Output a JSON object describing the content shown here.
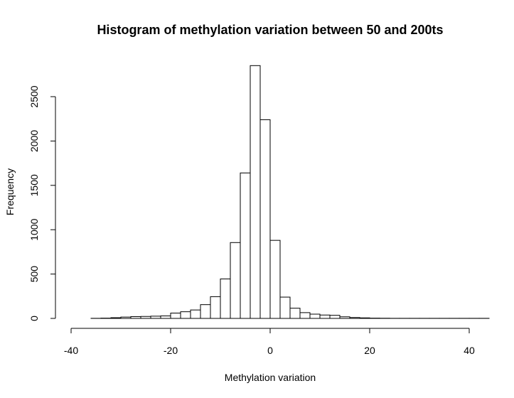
{
  "chart_data": {
    "type": "bar",
    "title": "Histogram of methylation variation between 50 and 200ts",
    "xlabel": "Methylation variation",
    "ylabel": "Frequency",
    "xlim": [
      -40,
      40
    ],
    "ylim": [
      0,
      2600
    ],
    "x_ticks": [
      -40,
      -20,
      0,
      20,
      40
    ],
    "y_ticks": [
      0,
      500,
      1000,
      1500,
      2000,
      2500
    ],
    "bin_width": 2,
    "bins": [
      {
        "x0": -36,
        "x1": -34,
        "count": 1
      },
      {
        "x0": -34,
        "x1": -32,
        "count": 3
      },
      {
        "x0": -32,
        "x1": -30,
        "count": 8
      },
      {
        "x0": -30,
        "x1": -28,
        "count": 15
      },
      {
        "x0": -28,
        "x1": -26,
        "count": 20
      },
      {
        "x0": -26,
        "x1": -24,
        "count": 22
      },
      {
        "x0": -24,
        "x1": -22,
        "count": 25
      },
      {
        "x0": -22,
        "x1": -20,
        "count": 28
      },
      {
        "x0": -20,
        "x1": -18,
        "count": 60
      },
      {
        "x0": -18,
        "x1": -16,
        "count": 75
      },
      {
        "x0": -16,
        "x1": -14,
        "count": 95
      },
      {
        "x0": -14,
        "x1": -12,
        "count": 155
      },
      {
        "x0": -12,
        "x1": -10,
        "count": 245
      },
      {
        "x0": -10,
        "x1": -8,
        "count": 445
      },
      {
        "x0": -8,
        "x1": -6,
        "count": 855
      },
      {
        "x0": -6,
        "x1": -4,
        "count": 1640
      },
      {
        "x0": -4,
        "x1": -2,
        "count": 2850
      },
      {
        "x0": -2,
        "x1": 0,
        "count": 2240
      },
      {
        "x0": 0,
        "x1": 2,
        "count": 880
      },
      {
        "x0": 2,
        "x1": 4,
        "count": 240
      },
      {
        "x0": 4,
        "x1": 6,
        "count": 115
      },
      {
        "x0": 6,
        "x1": 8,
        "count": 65
      },
      {
        "x0": 8,
        "x1": 10,
        "count": 48
      },
      {
        "x0": 10,
        "x1": 12,
        "count": 38
      },
      {
        "x0": 12,
        "x1": 14,
        "count": 35
      },
      {
        "x0": 14,
        "x1": 16,
        "count": 18
      },
      {
        "x0": 16,
        "x1": 18,
        "count": 10
      },
      {
        "x0": 18,
        "x1": 20,
        "count": 6
      },
      {
        "x0": 20,
        "x1": 22,
        "count": 3
      },
      {
        "x0": 22,
        "x1": 24,
        "count": 2
      },
      {
        "x0": 24,
        "x1": 26,
        "count": 1
      },
      {
        "x0": 26,
        "x1": 28,
        "count": 1
      },
      {
        "x0": 28,
        "x1": 30,
        "count": 1
      },
      {
        "x0": 30,
        "x1": 32,
        "count": 1
      },
      {
        "x0": 32,
        "x1": 34,
        "count": 1
      },
      {
        "x0": 34,
        "x1": 36,
        "count": 1
      },
      {
        "x0": 36,
        "x1": 38,
        "count": 1
      },
      {
        "x0": 38,
        "x1": 40,
        "count": 1
      },
      {
        "x0": 40,
        "x1": 42,
        "count": 1
      },
      {
        "x0": 42,
        "x1": 44,
        "count": 1
      }
    ],
    "grid": false,
    "legend": "none",
    "colors": {
      "bar_fill": "#ffffff",
      "bar_stroke": "#000000"
    }
  }
}
